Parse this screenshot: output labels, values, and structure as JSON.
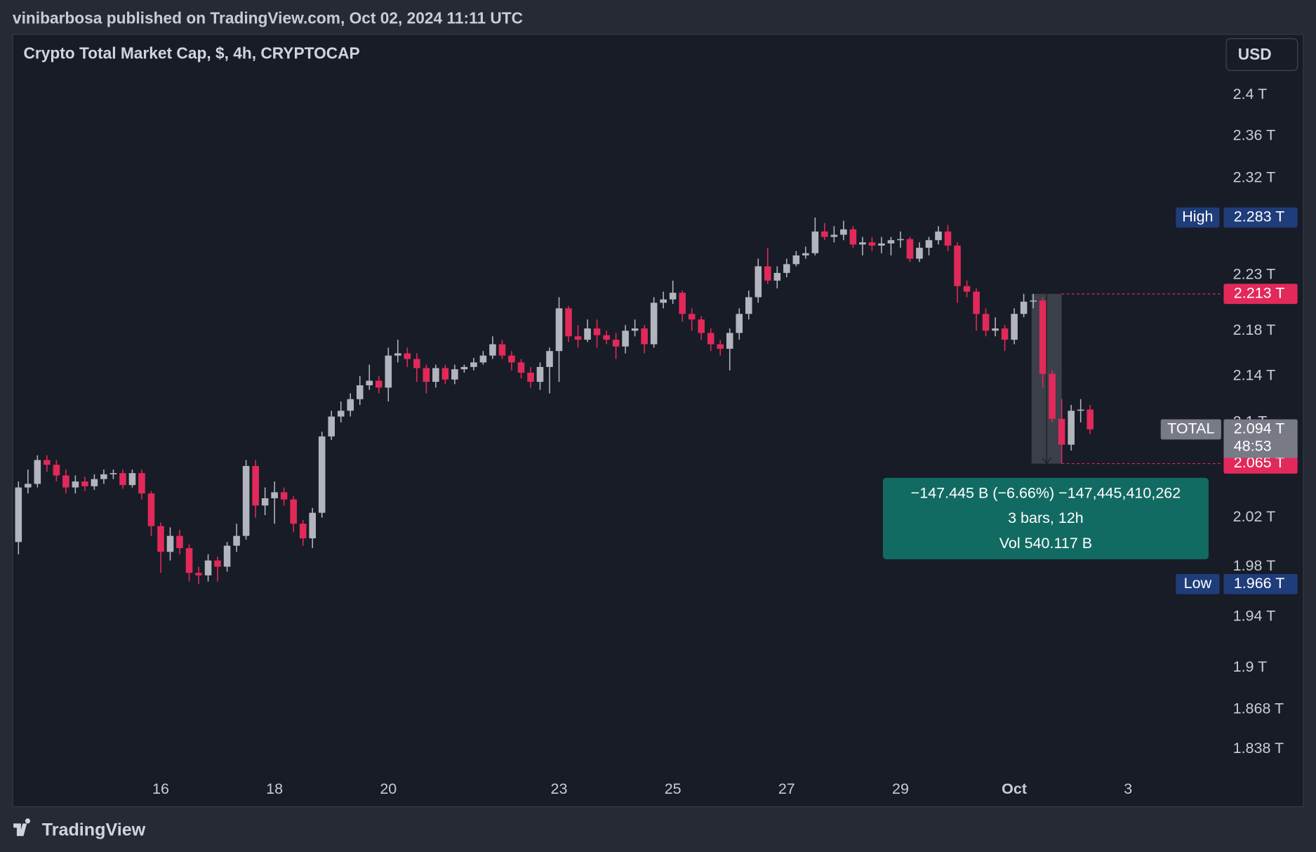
{
  "header": {
    "publisher": "vinibarbosa published on TradingView.com, Oct 02, 2024 11:11 UTC"
  },
  "chart_data": {
    "type": "candlestick",
    "title": "Crypto Total Market Cap, $, 4h, CRYPTOCAP",
    "currency": "USD",
    "categories": [
      null,
      null,
      null,
      null,
      null,
      null,
      null,
      null,
      null,
      null,
      null,
      null,
      null,
      null,
      null,
      "16",
      null,
      null,
      null,
      null,
      null,
      null,
      null,
      null,
      null,
      null,
      null,
      "18",
      null,
      null,
      null,
      null,
      null,
      null,
      null,
      null,
      null,
      null,
      null,
      "20",
      null,
      null,
      null,
      null,
      null,
      null,
      null,
      null,
      null,
      null,
      null,
      null,
      null,
      null,
      null,
      null,
      null,
      "23",
      null,
      null,
      null,
      null,
      null,
      null,
      null,
      null,
      null,
      null,
      null,
      "25",
      null,
      null,
      null,
      null,
      null,
      null,
      null,
      null,
      null,
      null,
      null,
      "27",
      null,
      null,
      null,
      null,
      null,
      null,
      null,
      null,
      null,
      null,
      null,
      "29",
      null,
      null,
      null,
      null,
      null,
      null,
      null,
      null,
      null,
      null,
      null,
      "Oct",
      null,
      null,
      null,
      null,
      null,
      null,
      null,
      null,
      null,
      null,
      null,
      "3",
      null,
      null,
      null,
      null,
      null,
      null,
      null,
      null
    ],
    "open": [
      2.0,
      2.045,
      2.048,
      2.068,
      2.064,
      2.055,
      2.045,
      2.05,
      2.046,
      2.052,
      2.056,
      2.057,
      2.047,
      2.057,
      2.04,
      2.013,
      1.992,
      2.005,
      1.995,
      1.975,
      1.973,
      1.985,
      1.98,
      1.997,
      2.005,
      2.063,
      2.03,
      2.036,
      2.041,
      2.035,
      2.015,
      2.003,
      2.024,
      2.088,
      2.105,
      2.11,
      2.12,
      2.132,
      2.136,
      2.13,
      2.158,
      2.16,
      2.155,
      2.147,
      2.135,
      2.147,
      2.137,
      2.146,
      2.148,
      2.152,
      2.158,
      2.168,
      2.158,
      2.152,
      2.143,
      2.135,
      2.148,
      2.162,
      2.2,
      2.175,
      2.172,
      2.182,
      2.176,
      2.172,
      2.166,
      2.18,
      2.182,
      2.168,
      2.205,
      2.208,
      2.214,
      2.195,
      2.19,
      2.178,
      2.168,
      2.164,
      2.178,
      2.195,
      2.21,
      2.238,
      2.225,
      2.232,
      2.24,
      2.248,
      2.25,
      2.27,
      2.265,
      2.267,
      2.272,
      2.258,
      2.26,
      2.257,
      2.259,
      2.262,
      2.263,
      2.245,
      2.255,
      2.262,
      2.27,
      2.257,
      2.22,
      2.215,
      2.195,
      2.18,
      2.182,
      2.172,
      2.195,
      2.206,
      2.207,
      2.142,
      2.103,
      2.081,
      2.11,
      2.111,
      null,
      null,
      null,
      null,
      null,
      null,
      null,
      null,
      null,
      null,
      null,
      null
    ],
    "high": [
      2.05,
      2.06,
      2.072,
      2.072,
      2.068,
      2.06,
      2.055,
      2.054,
      2.056,
      2.06,
      2.06,
      2.06,
      2.06,
      2.06,
      2.042,
      2.016,
      2.012,
      2.01,
      1.998,
      1.98,
      1.99,
      1.988,
      2.0,
      2.015,
      2.068,
      2.068,
      2.045,
      2.05,
      2.045,
      2.038,
      2.018,
      2.028,
      2.092,
      2.11,
      2.118,
      2.125,
      2.14,
      2.15,
      2.14,
      2.165,
      2.172,
      2.165,
      2.16,
      2.15,
      2.15,
      2.15,
      2.15,
      2.15,
      2.156,
      2.162,
      2.175,
      2.172,
      2.162,
      2.155,
      2.148,
      2.152,
      2.165,
      2.21,
      2.202,
      2.185,
      2.19,
      2.19,
      2.18,
      2.178,
      2.185,
      2.19,
      2.185,
      2.21,
      2.215,
      2.225,
      2.216,
      2.2,
      2.193,
      2.182,
      2.172,
      2.182,
      2.2,
      2.216,
      2.245,
      2.255,
      2.238,
      2.245,
      2.252,
      2.256,
      2.283,
      2.278,
      2.275,
      2.28,
      2.275,
      2.265,
      2.265,
      2.265,
      2.265,
      2.27,
      2.265,
      2.26,
      2.265,
      2.275,
      2.276,
      2.26,
      2.225,
      2.218,
      2.2,
      2.192,
      2.185,
      2.2,
      2.213,
      2.213,
      2.21,
      2.145,
      2.12,
      2.115,
      2.12,
      2.115,
      null,
      null,
      null,
      null,
      null,
      null,
      null,
      null,
      null,
      null,
      null,
      null
    ],
    "low": [
      1.99,
      2.04,
      2.045,
      2.058,
      2.05,
      2.04,
      2.04,
      2.042,
      2.043,
      2.048,
      2.052,
      2.044,
      2.045,
      2.035,
      2.005,
      1.975,
      1.985,
      1.99,
      1.968,
      1.966,
      1.968,
      1.968,
      1.976,
      1.992,
      2.002,
      2.02,
      2.022,
      2.015,
      2.03,
      2.008,
      1.997,
      1.995,
      2.02,
      2.085,
      2.1,
      2.105,
      2.115,
      2.128,
      2.125,
      2.118,
      2.152,
      2.148,
      2.135,
      2.125,
      2.13,
      2.133,
      2.133,
      2.143,
      2.145,
      2.15,
      2.155,
      2.155,
      2.145,
      2.138,
      2.13,
      2.128,
      2.125,
      2.135,
      2.17,
      2.165,
      2.17,
      2.165,
      2.168,
      2.155,
      2.16,
      2.175,
      2.16,
      2.165,
      2.2,
      2.204,
      2.188,
      2.18,
      2.172,
      2.162,
      2.158,
      2.145,
      2.172,
      2.19,
      2.205,
      2.222,
      2.218,
      2.228,
      2.238,
      2.245,
      2.248,
      2.262,
      2.26,
      2.262,
      2.255,
      2.248,
      2.252,
      2.25,
      2.248,
      2.255,
      2.242,
      2.242,
      2.248,
      2.258,
      2.252,
      2.205,
      2.21,
      2.18,
      2.175,
      2.175,
      2.162,
      2.168,
      2.192,
      2.2,
      2.13,
      2.1,
      2.065,
      2.076,
      2.1,
      2.09,
      null,
      null,
      null,
      null,
      null,
      null,
      null,
      null,
      null,
      null,
      null,
      null
    ],
    "close": [
      2.045,
      2.048,
      2.068,
      2.064,
      2.055,
      2.045,
      2.05,
      2.046,
      2.052,
      2.056,
      2.057,
      2.047,
      2.057,
      2.04,
      2.013,
      1.992,
      2.005,
      1.995,
      1.975,
      1.973,
      1.985,
      1.98,
      1.997,
      2.005,
      2.063,
      2.03,
      2.036,
      2.041,
      2.035,
      2.015,
      2.003,
      2.024,
      2.088,
      2.105,
      2.11,
      2.12,
      2.132,
      2.136,
      2.13,
      2.158,
      2.16,
      2.155,
      2.147,
      2.135,
      2.147,
      2.137,
      2.146,
      2.148,
      2.152,
      2.158,
      2.168,
      2.158,
      2.152,
      2.143,
      2.135,
      2.148,
      2.162,
      2.2,
      2.175,
      2.172,
      2.182,
      2.176,
      2.172,
      2.166,
      2.18,
      2.182,
      2.168,
      2.205,
      2.208,
      2.214,
      2.195,
      2.19,
      2.178,
      2.168,
      2.164,
      2.178,
      2.195,
      2.21,
      2.238,
      2.225,
      2.232,
      2.24,
      2.248,
      2.25,
      2.27,
      2.265,
      2.267,
      2.272,
      2.258,
      2.26,
      2.257,
      2.259,
      2.262,
      2.263,
      2.245,
      2.255,
      2.262,
      2.27,
      2.257,
      2.22,
      2.215,
      2.195,
      2.18,
      2.182,
      2.172,
      2.195,
      2.206,
      2.207,
      2.142,
      2.103,
      2.081,
      2.11,
      2.111,
      2.094,
      null,
      null,
      null,
      null,
      null,
      null,
      null,
      null,
      null,
      null,
      null,
      null
    ],
    "up_color": "#b2b5be",
    "down_color": "#e2295a",
    "ylim": [
      1.822,
      2.46
    ],
    "log_scale": true,
    "grid": false,
    "yticks": [
      {
        "value": 2.4,
        "label": "2.4 T"
      },
      {
        "value": 2.36,
        "label": "2.36 T"
      },
      {
        "value": 2.32,
        "label": "2.32 T"
      },
      {
        "value": 2.23,
        "label": "2.23 T"
      },
      {
        "value": 2.18,
        "label": "2.18 T"
      },
      {
        "value": 2.14,
        "label": "2.14 T"
      },
      {
        "value": 2.1,
        "label": "2.1 T"
      },
      {
        "value": 2.02,
        "label": "2.02 T"
      },
      {
        "value": 1.98,
        "label": "1.98 T"
      },
      {
        "value": 1.94,
        "label": "1.94 T"
      },
      {
        "value": 1.9,
        "label": "1.9 T"
      },
      {
        "value": 1.868,
        "label": "1.868 T"
      },
      {
        "value": 1.838,
        "label": "1.838 T"
      }
    ],
    "high_marker": {
      "label": "High",
      "value": 2.283,
      "value_label": "2.283 T",
      "color": "#1f3d7a"
    },
    "low_marker": {
      "label": "Low",
      "value": 1.966,
      "value_label": "1.966 T",
      "color": "#1f3d7a"
    },
    "last_price": {
      "label": "TOTAL",
      "value": 2.094,
      "value_label": "2.094 T",
      "countdown": "48:53",
      "color": "#787b86"
    },
    "measure": {
      "from": 2.213,
      "from_label": "2.213 T",
      "to": 2.065,
      "to_label": "2.065 T",
      "color": "#e2295a",
      "box_color": "#126b62",
      "lines": [
        "−147.445 B (−6.66%) −147,445,410,262",
        "3 bars, 12h",
        "Vol 540.117 B"
      ]
    }
  },
  "footer": {
    "brand": "TradingView"
  }
}
